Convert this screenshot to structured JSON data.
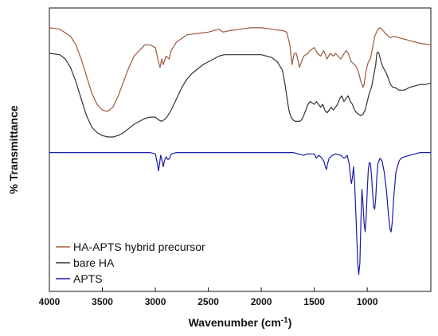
{
  "chart_data": {
    "type": "line",
    "title": "",
    "xlabel": "Wavenumber (cm",
    "xlabel_superscript": "-1",
    "xlabel_suffix": ")",
    "ylabel": "% Transmittance",
    "xlim": [
      4000,
      400
    ],
    "x_reversed": true,
    "y_ticks_shown": false,
    "grid": false,
    "legend_position": "bottom-left",
    "x_ticks": [
      4000,
      3500,
      3000,
      2500,
      2000,
      1500,
      1000
    ],
    "y_scale_note": "arbitrary units, stacked/offset curves",
    "series": [
      {
        "name": "HA-APTS hybrid precursor",
        "color": "#9c5a3c",
        "points": [
          [
            4000,
            0.93
          ],
          [
            3900,
            0.925
          ],
          [
            3800,
            0.9
          ],
          [
            3750,
            0.87
          ],
          [
            3700,
            0.82
          ],
          [
            3650,
            0.76
          ],
          [
            3600,
            0.7
          ],
          [
            3550,
            0.66
          ],
          [
            3500,
            0.64
          ],
          [
            3450,
            0.635
          ],
          [
            3400,
            0.65
          ],
          [
            3350,
            0.69
          ],
          [
            3300,
            0.74
          ],
          [
            3250,
            0.79
          ],
          [
            3200,
            0.83
          ],
          [
            3100,
            0.87
          ],
          [
            3050,
            0.87
          ],
          [
            3000,
            0.86
          ],
          [
            2970,
            0.81
          ],
          [
            2955,
            0.79
          ],
          [
            2940,
            0.82
          ],
          [
            2925,
            0.8
          ],
          [
            2900,
            0.83
          ],
          [
            2870,
            0.82
          ],
          [
            2850,
            0.85
          ],
          [
            2800,
            0.88
          ],
          [
            2700,
            0.905
          ],
          [
            2600,
            0.91
          ],
          [
            2500,
            0.915
          ],
          [
            2400,
            0.925
          ],
          [
            2360,
            0.915
          ],
          [
            2300,
            0.92
          ],
          [
            2200,
            0.925
          ],
          [
            2100,
            0.93
          ],
          [
            2000,
            0.93
          ],
          [
            1900,
            0.925
          ],
          [
            1800,
            0.92
          ],
          [
            1760,
            0.915
          ],
          [
            1730,
            0.87
          ],
          [
            1710,
            0.8
          ],
          [
            1700,
            0.82
          ],
          [
            1690,
            0.84
          ],
          [
            1670,
            0.84
          ],
          [
            1650,
            0.81
          ],
          [
            1640,
            0.79
          ],
          [
            1630,
            0.8
          ],
          [
            1600,
            0.83
          ],
          [
            1560,
            0.84
          ],
          [
            1540,
            0.85
          ],
          [
            1500,
            0.86
          ],
          [
            1470,
            0.84
          ],
          [
            1440,
            0.83
          ],
          [
            1410,
            0.85
          ],
          [
            1380,
            0.82
          ],
          [
            1350,
            0.84
          ],
          [
            1320,
            0.83
          ],
          [
            1300,
            0.84
          ],
          [
            1250,
            0.82
          ],
          [
            1200,
            0.85
          ],
          [
            1180,
            0.84
          ],
          [
            1150,
            0.81
          ],
          [
            1120,
            0.8
          ],
          [
            1100,
            0.79
          ],
          [
            1080,
            0.77
          ],
          [
            1060,
            0.74
          ],
          [
            1040,
            0.72
          ],
          [
            1030,
            0.73
          ],
          [
            1010,
            0.78
          ],
          [
            990,
            0.81
          ],
          [
            970,
            0.82
          ],
          [
            950,
            0.86
          ],
          [
            930,
            0.9
          ],
          [
            900,
            0.925
          ],
          [
            880,
            0.93
          ],
          [
            860,
            0.925
          ],
          [
            830,
            0.91
          ],
          [
            800,
            0.9
          ],
          [
            780,
            0.895
          ],
          [
            750,
            0.9
          ],
          [
            700,
            0.895
          ],
          [
            600,
            0.885
          ],
          [
            500,
            0.875
          ],
          [
            400,
            0.87
          ]
        ]
      },
      {
        "name": "bare HA",
        "color": "#333333",
        "points": [
          [
            4000,
            0.84
          ],
          [
            3900,
            0.835
          ],
          [
            3850,
            0.82
          ],
          [
            3800,
            0.79
          ],
          [
            3750,
            0.74
          ],
          [
            3700,
            0.68
          ],
          [
            3650,
            0.62
          ],
          [
            3600,
            0.58
          ],
          [
            3550,
            0.56
          ],
          [
            3500,
            0.55
          ],
          [
            3450,
            0.545
          ],
          [
            3400,
            0.545
          ],
          [
            3350,
            0.55
          ],
          [
            3300,
            0.56
          ],
          [
            3250,
            0.575
          ],
          [
            3200,
            0.59
          ],
          [
            3150,
            0.6
          ],
          [
            3100,
            0.61
          ],
          [
            3050,
            0.615
          ],
          [
            3000,
            0.615
          ],
          [
            2970,
            0.605
          ],
          [
            2940,
            0.6
          ],
          [
            2920,
            0.605
          ],
          [
            2900,
            0.61
          ],
          [
            2850,
            0.64
          ],
          [
            2800,
            0.68
          ],
          [
            2750,
            0.72
          ],
          [
            2700,
            0.75
          ],
          [
            2650,
            0.77
          ],
          [
            2600,
            0.785
          ],
          [
            2550,
            0.8
          ],
          [
            2500,
            0.81
          ],
          [
            2450,
            0.82
          ],
          [
            2400,
            0.83
          ],
          [
            2350,
            0.835
          ],
          [
            2300,
            0.835
          ],
          [
            2200,
            0.835
          ],
          [
            2100,
            0.835
          ],
          [
            2000,
            0.835
          ],
          [
            1950,
            0.83
          ],
          [
            1900,
            0.825
          ],
          [
            1850,
            0.81
          ],
          [
            1800,
            0.78
          ],
          [
            1780,
            0.74
          ],
          [
            1760,
            0.69
          ],
          [
            1740,
            0.64
          ],
          [
            1720,
            0.615
          ],
          [
            1700,
            0.605
          ],
          [
            1680,
            0.6
          ],
          [
            1660,
            0.6
          ],
          [
            1640,
            0.6
          ],
          [
            1620,
            0.605
          ],
          [
            1600,
            0.62
          ],
          [
            1580,
            0.64
          ],
          [
            1560,
            0.66
          ],
          [
            1540,
            0.67
          ],
          [
            1520,
            0.665
          ],
          [
            1500,
            0.66
          ],
          [
            1480,
            0.67
          ],
          [
            1460,
            0.66
          ],
          [
            1440,
            0.65
          ],
          [
            1420,
            0.66
          ],
          [
            1400,
            0.64
          ],
          [
            1380,
            0.63
          ],
          [
            1360,
            0.64
          ],
          [
            1340,
            0.65
          ],
          [
            1320,
            0.64
          ],
          [
            1300,
            0.65
          ],
          [
            1280,
            0.66
          ],
          [
            1260,
            0.68
          ],
          [
            1240,
            0.69
          ],
          [
            1220,
            0.67
          ],
          [
            1200,
            0.68
          ],
          [
            1180,
            0.69
          ],
          [
            1160,
            0.67
          ],
          [
            1140,
            0.66
          ],
          [
            1120,
            0.64
          ],
          [
            1100,
            0.63
          ],
          [
            1080,
            0.625
          ],
          [
            1060,
            0.62
          ],
          [
            1040,
            0.625
          ],
          [
            1020,
            0.64
          ],
          [
            1000,
            0.67
          ],
          [
            980,
            0.7
          ],
          [
            960,
            0.72
          ],
          [
            940,
            0.76
          ],
          [
            920,
            0.8
          ],
          [
            910,
            0.84
          ],
          [
            900,
            0.845
          ],
          [
            890,
            0.84
          ],
          [
            870,
            0.81
          ],
          [
            850,
            0.79
          ],
          [
            820,
            0.77
          ],
          [
            800,
            0.75
          ],
          [
            780,
            0.73
          ],
          [
            760,
            0.72
          ],
          [
            740,
            0.72
          ],
          [
            700,
            0.71
          ],
          [
            650,
            0.71
          ],
          [
            600,
            0.72
          ],
          [
            550,
            0.725
          ],
          [
            500,
            0.73
          ],
          [
            450,
            0.73
          ],
          [
            400,
            0.735
          ]
        ]
      },
      {
        "name": "APTS",
        "color": "#1a1aa8",
        "points": [
          [
            4000,
            0.49
          ],
          [
            3800,
            0.49
          ],
          [
            3600,
            0.49
          ],
          [
            3400,
            0.49
          ],
          [
            3200,
            0.49
          ],
          [
            3050,
            0.49
          ],
          [
            3000,
            0.485
          ],
          [
            2980,
            0.45
          ],
          [
            2970,
            0.425
          ],
          [
            2960,
            0.45
          ],
          [
            2950,
            0.48
          ],
          [
            2935,
            0.46
          ],
          [
            2925,
            0.44
          ],
          [
            2915,
            0.46
          ],
          [
            2900,
            0.475
          ],
          [
            2880,
            0.465
          ],
          [
            2865,
            0.47
          ],
          [
            2850,
            0.485
          ],
          [
            2800,
            0.49
          ],
          [
            2600,
            0.49
          ],
          [
            2400,
            0.49
          ],
          [
            2200,
            0.49
          ],
          [
            2000,
            0.49
          ],
          [
            1800,
            0.49
          ],
          [
            1700,
            0.49
          ],
          [
            1650,
            0.485
          ],
          [
            1600,
            0.48
          ],
          [
            1570,
            0.485
          ],
          [
            1500,
            0.485
          ],
          [
            1480,
            0.47
          ],
          [
            1460,
            0.48
          ],
          [
            1440,
            0.475
          ],
          [
            1410,
            0.46
          ],
          [
            1395,
            0.44
          ],
          [
            1385,
            0.43
          ],
          [
            1375,
            0.45
          ],
          [
            1360,
            0.47
          ],
          [
            1330,
            0.48
          ],
          [
            1300,
            0.485
          ],
          [
            1250,
            0.48
          ],
          [
            1220,
            0.47
          ],
          [
            1200,
            0.475
          ],
          [
            1190,
            0.48
          ],
          [
            1170,
            0.45
          ],
          [
            1160,
            0.41
          ],
          [
            1150,
            0.38
          ],
          [
            1140,
            0.4
          ],
          [
            1130,
            0.44
          ],
          [
            1120,
            0.39
          ],
          [
            1110,
            0.3
          ],
          [
            1100,
            0.2
          ],
          [
            1090,
            0.1
          ],
          [
            1080,
            0.06
          ],
          [
            1070,
            0.1
          ],
          [
            1060,
            0.25
          ],
          [
            1050,
            0.36
          ],
          [
            1040,
            0.31
          ],
          [
            1030,
            0.24
          ],
          [
            1020,
            0.21
          ],
          [
            1010,
            0.26
          ],
          [
            1000,
            0.36
          ],
          [
            990,
            0.43
          ],
          [
            980,
            0.455
          ],
          [
            970,
            0.45
          ],
          [
            960,
            0.41
          ],
          [
            950,
            0.35
          ],
          [
            940,
            0.3
          ],
          [
            930,
            0.29
          ],
          [
            920,
            0.33
          ],
          [
            910,
            0.4
          ],
          [
            900,
            0.45
          ],
          [
            880,
            0.47
          ],
          [
            860,
            0.46
          ],
          [
            840,
            0.42
          ],
          [
            820,
            0.36
          ],
          [
            800,
            0.27
          ],
          [
            785,
            0.22
          ],
          [
            775,
            0.21
          ],
          [
            765,
            0.24
          ],
          [
            750,
            0.33
          ],
          [
            730,
            0.42
          ],
          [
            700,
            0.46
          ],
          [
            680,
            0.47
          ],
          [
            650,
            0.475
          ],
          [
            600,
            0.48
          ],
          [
            550,
            0.485
          ],
          [
            500,
            0.49
          ],
          [
            450,
            0.49
          ],
          [
            400,
            0.49
          ]
        ]
      }
    ]
  }
}
